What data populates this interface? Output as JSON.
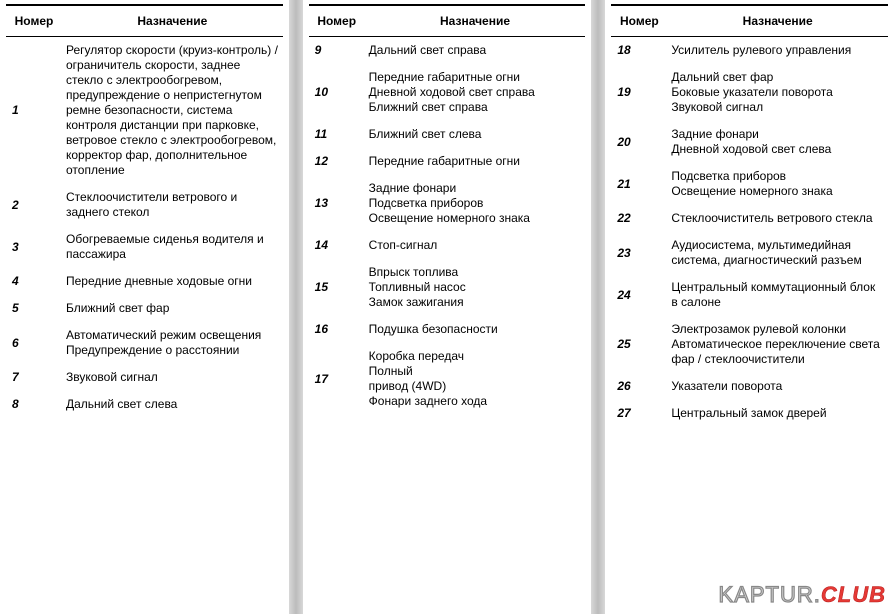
{
  "headers": {
    "num": "Номер",
    "desc": "Назначение"
  },
  "watermark": {
    "part1": "KAPTUR",
    "dot": ".",
    "part2": "CLUB"
  },
  "columns": [
    {
      "rows": [
        {
          "num": "1",
          "desc": "Регулятор скорости (круиз-контроль) / ограничитель скорости, заднее стекло с электрообогревом, предупреждение о непристегнутом ремне безопасности, система контроля дистанции при парковке, ветровое стекло с электрообогревом, корректор фар, дополнитель­ное отопление"
        },
        {
          "num": "2",
          "desc": "Стеклоочистители ветрового и заднего стекол"
        },
        {
          "num": "3",
          "desc": "Обогреваемые сиденья водителя и пассажира"
        },
        {
          "num": "4",
          "desc": "Передние дневные ходовые огни"
        },
        {
          "num": "5",
          "desc": "Ближний свет фар"
        },
        {
          "num": "6",
          "desc": "Автоматический режим освещения\nПредупреждение о расстоянии"
        },
        {
          "num": "7",
          "desc": "Звуковой сигнал"
        },
        {
          "num": "8",
          "desc": "Дальний свет слева"
        }
      ]
    },
    {
      "rows": [
        {
          "num": "9",
          "desc": "Дальний свет справа"
        },
        {
          "num": "10",
          "desc": "Передние габаритные огни\nДневной ходовой свет справа\nБлижний свет справа"
        },
        {
          "num": "11",
          "desc": "Ближний свет слева"
        },
        {
          "num": "12",
          "desc": "Передние габаритные огни"
        },
        {
          "num": "13",
          "desc": "Задние фонари\nПодсветка приборов\nОсвещение номерного знака"
        },
        {
          "num": "14",
          "desc": "Стоп-сигнал"
        },
        {
          "num": "15",
          "desc": "Впрыск топлива\nТопливный насос\nЗамок зажигания"
        },
        {
          "num": "16",
          "desc": "Подушка безопасности"
        },
        {
          "num": "17",
          "desc": "Коробка передач\nПолный\nпривод (4WD)\nФонари заднего хода"
        }
      ]
    },
    {
      "rows": [
        {
          "num": "18",
          "desc": "Усилитель рулевого управления"
        },
        {
          "num": "19",
          "desc": "Дальний свет фар\nБоковые указатели поворота\nЗвуковой сигнал"
        },
        {
          "num": "20",
          "desc": "Задние фонари\nДневной ходовой свет слева"
        },
        {
          "num": "21",
          "desc": "Подсветка приборов\nОсвещение номерного знака"
        },
        {
          "num": "22",
          "desc": "Стеклоочиститель ветрового стекла"
        },
        {
          "num": "23",
          "desc": "Аудиосистема, мультимедийная система, диагностический разъем"
        },
        {
          "num": "24",
          "desc": "Центральный коммутационный блок в салоне"
        },
        {
          "num": "25",
          "desc": "Электрозамок рулевой колонки\nАвтоматическое переключение света фар / стеклоочистители"
        },
        {
          "num": "26",
          "desc": "Указатели поворота"
        },
        {
          "num": "27",
          "desc": "Центральный замок дверей"
        }
      ]
    }
  ]
}
